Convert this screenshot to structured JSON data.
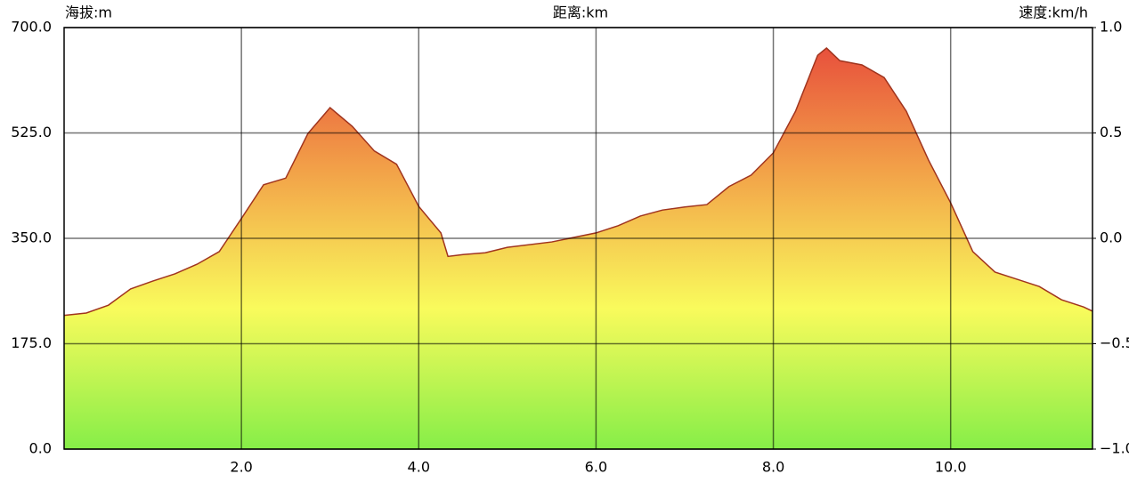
{
  "chart_data": {
    "type": "area",
    "y_label": "海拔:m",
    "x_label": "距离:km",
    "y2_label": "速度:km/h",
    "x": [
      0,
      0.25,
      0.5,
      0.75,
      1.0,
      1.25,
      1.5,
      1.75,
      2.0,
      2.25,
      2.5,
      2.75,
      3.0,
      3.25,
      3.5,
      3.75,
      4.0,
      4.25,
      4.33,
      4.5,
      4.75,
      5.0,
      5.5,
      6.0,
      6.25,
      6.5,
      6.75,
      7.0,
      7.25,
      7.5,
      7.75,
      8.0,
      8.25,
      8.5,
      8.6,
      8.75,
      9.0,
      9.25,
      9.5,
      9.75,
      10.0,
      10.25,
      10.5,
      10.75,
      11.0,
      11.25,
      11.5,
      11.6
    ],
    "series": [
      {
        "name": "海拔",
        "color": "#a0341e",
        "gradient": [
          "#e6433a",
          "#f2a048",
          "#f9fb5c",
          "#86ee48"
        ],
        "values": [
          222,
          226,
          239,
          266,
          279,
          291,
          307,
          328,
          383,
          439,
          450,
          524,
          567,
          536,
          495,
          473,
          403,
          359,
          320,
          323,
          326,
          335,
          344,
          359,
          371,
          387,
          397,
          402,
          406,
          436,
          455,
          492,
          561,
          654,
          666,
          645,
          638,
          617,
          561,
          480,
          409,
          328,
          294,
          282,
          270,
          248,
          236,
          229
        ]
      }
    ],
    "xlim": [
      0,
      11.6
    ],
    "xticks": [
      {
        "value": 2,
        "label": "2.0"
      },
      {
        "value": 4,
        "label": "4.0"
      },
      {
        "value": 6,
        "label": "6.0"
      },
      {
        "value": 8,
        "label": "8.0"
      },
      {
        "value": 10,
        "label": "10.0"
      }
    ],
    "ylim": [
      0,
      700
    ],
    "yticks": [
      {
        "value": 0,
        "label": "0.0"
      },
      {
        "value": 175,
        "label": "175.0"
      },
      {
        "value": 350,
        "label": "350.0"
      },
      {
        "value": 525,
        "label": "525.0"
      },
      {
        "value": 700,
        "label": "700.0"
      }
    ],
    "y2lim": [
      -1,
      1
    ],
    "y2ticks": [
      {
        "value": -1,
        "label": "−1.0"
      },
      {
        "value": -0.5,
        "label": "−0.5"
      },
      {
        "value": 0,
        "label": "0.0"
      },
      {
        "value": 0.5,
        "label": "0.5"
      },
      {
        "value": 1,
        "label": "1.0"
      }
    ],
    "grid": true
  }
}
